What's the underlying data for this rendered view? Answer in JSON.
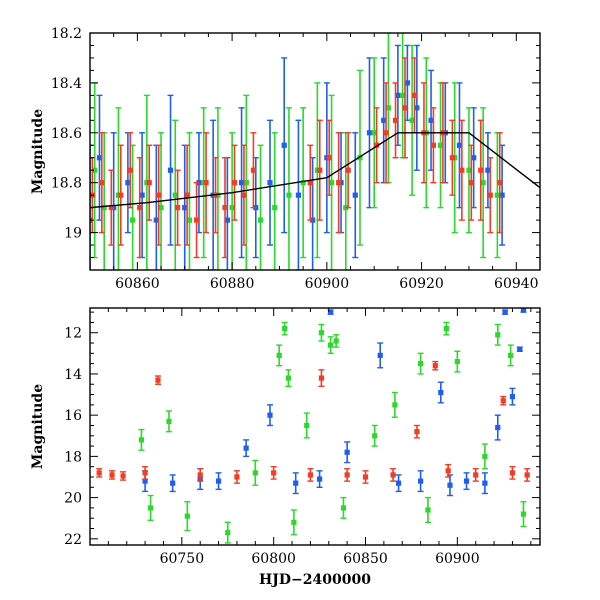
{
  "chart_data": [
    {
      "type": "scatter",
      "panel": "top",
      "xlabel": "",
      "ylabel": "Magnitude",
      "xlim": [
        60850,
        60945
      ],
      "ylim": [
        18.2,
        19.15
      ],
      "y_inverted": true,
      "x_ticks": [
        60860,
        60880,
        60900,
        60920,
        60940
      ],
      "y_ticks": [
        18.2,
        18.4,
        18.6,
        18.8,
        19
      ],
      "y_tick_labels": [
        "18.2",
        "18.4",
        "18.6",
        "18.8",
        "19"
      ],
      "grid": false,
      "legend": "none",
      "trend_line": {
        "color": "#000000",
        "x": [
          60850,
          60862,
          60880,
          60900,
          60915,
          60930,
          60945
        ],
        "y": [
          18.9,
          18.88,
          18.84,
          18.78,
          18.6,
          18.6,
          18.82
        ]
      },
      "series": [
        {
          "color": "#1f5ef0",
          "x": [
            60850,
            60852,
            60855,
            60858,
            60861,
            60864,
            60867,
            60870,
            60873,
            60876,
            60879,
            60882,
            60885,
            60888,
            60891,
            60894,
            60897,
            60900,
            60903,
            60906,
            60909,
            60912,
            60915,
            60917,
            60919,
            60922,
            60925,
            60928,
            60931,
            60934,
            60937
          ],
          "y": [
            18.95,
            18.7,
            18.9,
            18.8,
            18.85,
            18.95,
            18.75,
            18.9,
            18.8,
            18.85,
            18.95,
            18.8,
            18.9,
            18.8,
            18.65,
            18.85,
            18.95,
            18.7,
            18.8,
            18.85,
            18.6,
            18.55,
            18.45,
            18.4,
            18.5,
            18.55,
            18.6,
            18.65,
            18.7,
            18.75,
            18.85
          ],
          "err": [
            0.3,
            0.25,
            0.3,
            0.2,
            0.25,
            0.3,
            0.3,
            0.25,
            0.2,
            0.3,
            0.25,
            0.3,
            0.2,
            0.25,
            0.35,
            0.3,
            0.25,
            0.3,
            0.2,
            0.25,
            0.3,
            0.25,
            0.2,
            0.15,
            0.25,
            0.2,
            0.2,
            0.25,
            0.2,
            0.15,
            0.2
          ]
        },
        {
          "color": "#2bd92b",
          "x": [
            60851,
            60853,
            60856,
            60859,
            60862,
            60865,
            60868,
            60871,
            60874,
            60877,
            60880,
            60883,
            60886,
            60889,
            60892,
            60895,
            60898,
            60901,
            60904,
            60907,
            60910,
            60913,
            60916,
            60918,
            60921,
            60924,
            60927,
            60930,
            60933,
            60936
          ],
          "y": [
            18.75,
            18.9,
            18.85,
            18.95,
            18.8,
            18.9,
            18.85,
            18.95,
            18.8,
            18.85,
            18.9,
            18.8,
            18.95,
            18.9,
            18.85,
            18.8,
            18.75,
            18.8,
            18.9,
            18.7,
            18.6,
            18.5,
            18.45,
            18.55,
            18.6,
            18.65,
            18.7,
            18.75,
            18.8,
            18.85
          ],
          "err": [
            0.35,
            0.3,
            0.35,
            0.3,
            0.35,
            0.3,
            0.3,
            0.35,
            0.3,
            0.35,
            0.3,
            0.35,
            0.3,
            0.3,
            0.35,
            0.3,
            0.35,
            0.35,
            0.3,
            0.35,
            0.3,
            0.3,
            0.25,
            0.3,
            0.3,
            0.25,
            0.3,
            0.25,
            0.3,
            0.25
          ]
        },
        {
          "color": "#f23c25",
          "x": [
            60850.5,
            60852.5,
            60854.5,
            60856.5,
            60858.5,
            60860.5,
            60862.5,
            60864.5,
            60868.5,
            60870.5,
            60872.5,
            60874.5,
            60876.5,
            60878.5,
            60880.5,
            60882.5,
            60884.5,
            60896.5,
            60898.5,
            60900.5,
            60902.5,
            60904.5,
            60910.5,
            60912.5,
            60914.5,
            60916.5,
            60918.5,
            60920.5,
            60922.5,
            60924.5,
            60926.5,
            60928.5,
            60930.5,
            60932.5,
            60934.5,
            60936.5
          ],
          "y": [
            18.85,
            18.8,
            18.9,
            18.85,
            18.75,
            18.9,
            18.8,
            18.85,
            18.9,
            18.85,
            18.95,
            18.8,
            18.85,
            18.9,
            18.8,
            18.85,
            18.75,
            18.8,
            18.75,
            18.7,
            18.8,
            18.75,
            18.65,
            18.6,
            18.55,
            18.5,
            18.45,
            18.6,
            18.65,
            18.6,
            18.7,
            18.75,
            18.8,
            18.75,
            18.85,
            18.8
          ],
          "err": [
            0.15,
            0.2,
            0.15,
            0.2,
            0.15,
            0.2,
            0.15,
            0.2,
            0.15,
            0.2,
            0.15,
            0.2,
            0.15,
            0.2,
            0.15,
            0.2,
            0.15,
            0.15,
            0.2,
            0.15,
            0.2,
            0.15,
            0.15,
            0.2,
            0.15,
            0.2,
            0.15,
            0.2,
            0.15,
            0.2,
            0.15,
            0.2,
            0.15,
            0.2,
            0.15,
            0.2
          ]
        }
      ]
    },
    {
      "type": "scatter",
      "panel": "bottom",
      "xlabel": "HJD−2400000",
      "ylabel": "Magnitude",
      "xlim": [
        60700,
        60945
      ],
      "ylim": [
        10.8,
        22.3
      ],
      "y_inverted": true,
      "x_ticks": [
        60750,
        60800,
        60850,
        60900
      ],
      "y_ticks": [
        12,
        14,
        16,
        18,
        20,
        22
      ],
      "y_tick_labels": [
        "12",
        "14",
        "16",
        "18",
        "20",
        "22"
      ],
      "grid": false,
      "legend": "none",
      "series": [
        {
          "color": "#1f5ef0",
          "x": [
            60730,
            60745,
            60760,
            60770,
            60785,
            60798,
            60812,
            60825,
            60831,
            60840,
            60858,
            60868,
            60880,
            60891,
            60896,
            60905,
            60915,
            60922,
            60926,
            60930,
            60934,
            60936
          ],
          "y": [
            19.2,
            19.3,
            19.1,
            19.2,
            17.6,
            16.0,
            19.3,
            19.1,
            11.0,
            17.8,
            13.1,
            19.3,
            19.2,
            14.9,
            19.4,
            19.2,
            19.3,
            16.6,
            11.0,
            15.1,
            12.8,
            10.9
          ],
          "err": [
            0.5,
            0.4,
            0.5,
            0.4,
            0.4,
            0.5,
            0.5,
            0.4,
            0.1,
            0.5,
            0.6,
            0.4,
            0.5,
            0.5,
            0.5,
            0.4,
            0.5,
            0.6,
            0.1,
            0.4,
            0.1,
            0.1
          ]
        },
        {
          "color": "#2bd92b",
          "x": [
            60728,
            60733,
            60743,
            60753,
            60775,
            60790,
            60803,
            60806,
            60808,
            60811,
            60818,
            60826,
            60831,
            60834,
            60838,
            60855,
            60866,
            60880,
            60884,
            60894,
            60900,
            60915,
            60922,
            60929,
            60936
          ],
          "y": [
            17.2,
            20.5,
            16.3,
            20.9,
            21.7,
            18.8,
            13.1,
            11.8,
            14.2,
            21.2,
            16.5,
            12.0,
            12.6,
            12.4,
            20.5,
            17.0,
            15.5,
            13.5,
            20.6,
            11.8,
            13.4,
            18.0,
            12.1,
            13.1,
            20.8
          ],
          "err": [
            0.5,
            0.6,
            0.5,
            0.7,
            0.5,
            0.6,
            0.5,
            0.3,
            0.4,
            0.6,
            0.6,
            0.4,
            0.4,
            0.3,
            0.5,
            0.5,
            0.6,
            0.5,
            0.6,
            0.3,
            0.5,
            0.6,
            0.5,
            0.5,
            0.6
          ]
        },
        {
          "color": "#f23c25",
          "x": [
            60705,
            60712,
            60718,
            60730,
            60737,
            60760,
            60780,
            60800,
            60820,
            60826,
            60840,
            60850,
            60865,
            60878,
            60888,
            60895,
            60910,
            60925,
            60930,
            60938
          ],
          "y": [
            18.8,
            18.9,
            18.95,
            18.8,
            14.3,
            18.9,
            19.0,
            18.8,
            18.9,
            14.2,
            18.9,
            19.0,
            18.9,
            16.8,
            13.6,
            18.7,
            18.9,
            15.3,
            18.8,
            18.9
          ],
          "err": [
            0.2,
            0.2,
            0.2,
            0.3,
            0.2,
            0.3,
            0.3,
            0.3,
            0.3,
            0.4,
            0.3,
            0.3,
            0.3,
            0.3,
            0.2,
            0.3,
            0.3,
            0.2,
            0.3,
            0.3
          ]
        }
      ]
    }
  ]
}
